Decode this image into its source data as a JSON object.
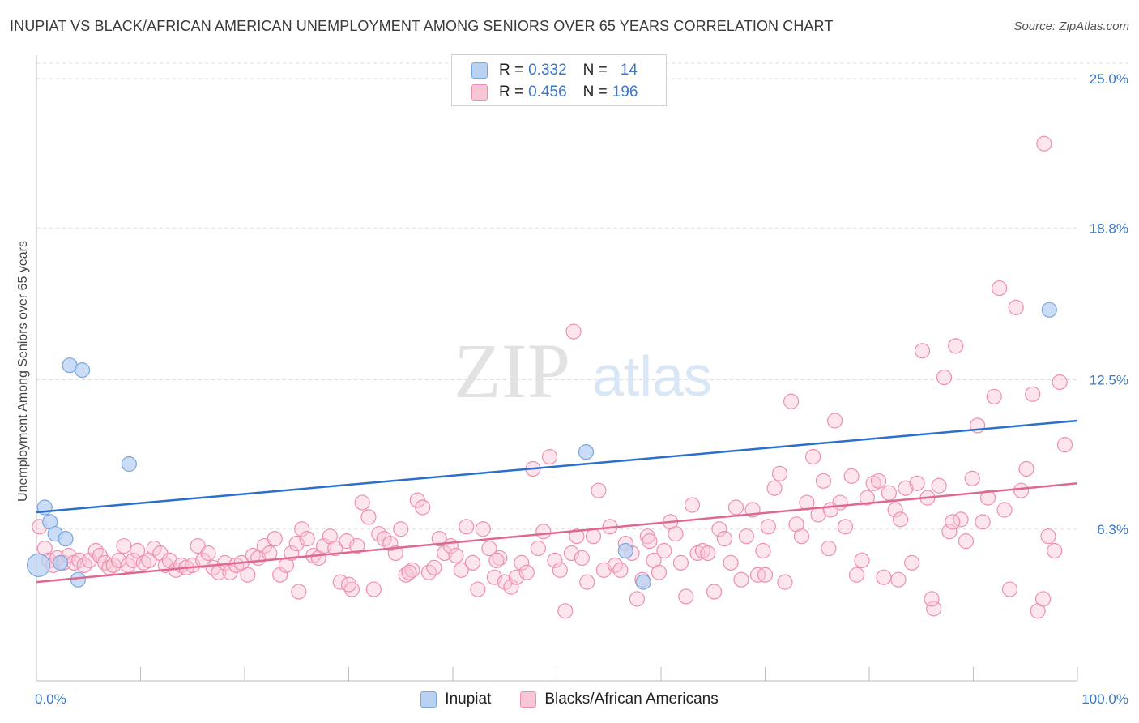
{
  "title": "INUPIAT VS BLACK/AFRICAN AMERICAN UNEMPLOYMENT AMONG SENIORS OVER 65 YEARS CORRELATION CHART",
  "source": "Source: ZipAtlas.com",
  "watermark": {
    "zip": "ZIP",
    "atlas": "atlas"
  },
  "legend": {
    "rows": [
      {
        "r_label": "R =",
        "r_value": "0.332",
        "n_label": "N =",
        "n_value": "14"
      },
      {
        "r_label": "R =",
        "r_value": "0.456",
        "n_label": "N =",
        "n_value": "196"
      }
    ]
  },
  "bottom_legend": {
    "a": "Inupiat",
    "b": "Blacks/African Americans"
  },
  "colors": {
    "inupiat_fill": "#b9d1f3",
    "inupiat_stroke": "#7aa6e0",
    "inupiat_line": "#2a6fcc",
    "black_fill": "#f8c6d5",
    "black_stroke": "#ee8fb0",
    "black_line": "#e0688f",
    "tick_text": "#3a78c8",
    "grid": "#dcdcdc"
  },
  "chart_data": {
    "type": "scatter",
    "title": "INUPIAT VS BLACK/AFRICAN AMERICAN UNEMPLOYMENT AMONG SENIORS OVER 65 YEARS CORRELATION CHART",
    "xlabel": "",
    "ylabel": "Unemployment Among Seniors over 65 years",
    "xlim": [
      0,
      100
    ],
    "ylim": [
      0,
      25
    ],
    "x_tick_labels": [
      "0.0%",
      "100.0%"
    ],
    "y_ticks": [
      6.3,
      12.5,
      18.8,
      25.0
    ],
    "y_tick_labels": [
      "6.3%",
      "12.5%",
      "18.8%",
      "25.0%"
    ],
    "grid": true,
    "legend_position": "top-center",
    "series": [
      {
        "name": "Inupiat",
        "r": 0.332,
        "n": 14,
        "trend": [
          [
            0,
            7.0
          ],
          [
            100,
            10.8
          ]
        ],
        "points": [
          [
            0.2,
            4.8
          ],
          [
            0.8,
            7.2
          ],
          [
            1.3,
            6.6
          ],
          [
            1.8,
            6.1
          ],
          [
            2.3,
            4.9
          ],
          [
            2.8,
            5.9
          ],
          [
            3.2,
            13.1
          ],
          [
            4.4,
            12.9
          ],
          [
            4.0,
            4.2
          ],
          [
            8.9,
            9.0
          ],
          [
            52.8,
            9.5
          ],
          [
            56.6,
            5.4
          ],
          [
            58.3,
            4.1
          ],
          [
            97.3,
            15.4
          ]
        ]
      },
      {
        "name": "Blacks/African Americans",
        "r": 0.456,
        "n": 196,
        "trend": [
          [
            0,
            4.1
          ],
          [
            100,
            8.2
          ]
        ],
        "points": [
          [
            0.3,
            6.4
          ],
          [
            0.8,
            5.5
          ],
          [
            1.2,
            5.0
          ],
          [
            1.6,
            4.8
          ],
          [
            2.0,
            5.1
          ],
          [
            2.6,
            4.9
          ],
          [
            3.1,
            5.2
          ],
          [
            3.6,
            4.9
          ],
          [
            4.1,
            5.0
          ],
          [
            4.6,
            4.8
          ],
          [
            5.1,
            5.0
          ],
          [
            5.7,
            5.4
          ],
          [
            6.1,
            5.2
          ],
          [
            6.6,
            4.9
          ],
          [
            7.0,
            4.7
          ],
          [
            7.4,
            4.8
          ],
          [
            7.9,
            5.0
          ],
          [
            8.4,
            5.6
          ],
          [
            8.8,
            4.8
          ],
          [
            9.3,
            5.0
          ],
          [
            9.7,
            5.4
          ],
          [
            10.3,
            4.9
          ],
          [
            10.8,
            5.0
          ],
          [
            11.3,
            5.5
          ],
          [
            11.9,
            5.3
          ],
          [
            12.4,
            4.8
          ],
          [
            12.8,
            5.0
          ],
          [
            13.4,
            4.6
          ],
          [
            13.9,
            4.8
          ],
          [
            14.4,
            4.7
          ],
          [
            15.0,
            4.8
          ],
          [
            15.5,
            5.6
          ],
          [
            16.0,
            5.0
          ],
          [
            16.5,
            5.3
          ],
          [
            17.0,
            4.7
          ],
          [
            17.5,
            4.5
          ],
          [
            18.1,
            4.9
          ],
          [
            18.6,
            4.5
          ],
          [
            19.2,
            4.8
          ],
          [
            19.7,
            4.9
          ],
          [
            20.3,
            4.4
          ],
          [
            20.8,
            5.2
          ],
          [
            21.3,
            5.1
          ],
          [
            21.9,
            5.6
          ],
          [
            22.4,
            5.3
          ],
          [
            22.9,
            5.9
          ],
          [
            23.4,
            4.4
          ],
          [
            24.0,
            4.8
          ],
          [
            24.5,
            5.3
          ],
          [
            25.0,
            5.7
          ],
          [
            25.5,
            6.3
          ],
          [
            26.0,
            5.9
          ],
          [
            26.6,
            5.2
          ],
          [
            27.1,
            5.1
          ],
          [
            27.6,
            5.6
          ],
          [
            28.2,
            6.0
          ],
          [
            28.7,
            5.5
          ],
          [
            29.2,
            4.1
          ],
          [
            29.8,
            5.8
          ],
          [
            30.3,
            3.8
          ],
          [
            30.8,
            5.6
          ],
          [
            31.3,
            7.4
          ],
          [
            31.9,
            6.8
          ],
          [
            32.4,
            3.8
          ],
          [
            32.9,
            6.1
          ],
          [
            33.4,
            5.9
          ],
          [
            34.0,
            5.7
          ],
          [
            34.5,
            5.3
          ],
          [
            35.0,
            6.3
          ],
          [
            35.5,
            4.4
          ],
          [
            36.1,
            4.6
          ],
          [
            36.6,
            7.5
          ],
          [
            37.1,
            7.2
          ],
          [
            37.7,
            4.5
          ],
          [
            38.2,
            4.7
          ],
          [
            38.7,
            5.9
          ],
          [
            39.2,
            5.3
          ],
          [
            39.8,
            5.6
          ],
          [
            40.3,
            5.2
          ],
          [
            40.8,
            4.6
          ],
          [
            41.3,
            6.4
          ],
          [
            41.9,
            4.9
          ],
          [
            42.4,
            3.8
          ],
          [
            42.9,
            6.3
          ],
          [
            43.5,
            5.5
          ],
          [
            44.0,
            4.3
          ],
          [
            44.5,
            5.1
          ],
          [
            45.0,
            4.1
          ],
          [
            45.6,
            3.9
          ],
          [
            46.1,
            4.3
          ],
          [
            46.6,
            4.9
          ],
          [
            47.1,
            4.5
          ],
          [
            47.7,
            8.8
          ],
          [
            48.2,
            5.5
          ],
          [
            48.7,
            6.2
          ],
          [
            49.3,
            9.3
          ],
          [
            49.8,
            5.0
          ],
          [
            50.3,
            4.6
          ],
          [
            50.8,
            2.9
          ],
          [
            51.4,
            5.3
          ],
          [
            51.9,
            6.0
          ],
          [
            52.4,
            5.1
          ],
          [
            52.9,
            4.1
          ],
          [
            53.5,
            6.0
          ],
          [
            54.0,
            7.9
          ],
          [
            54.5,
            4.6
          ],
          [
            55.1,
            6.4
          ],
          [
            55.6,
            4.8
          ],
          [
            56.1,
            4.6
          ],
          [
            56.6,
            5.7
          ],
          [
            57.2,
            5.3
          ],
          [
            57.7,
            3.4
          ],
          [
            58.2,
            4.2
          ],
          [
            58.7,
            6.0
          ],
          [
            59.3,
            5.0
          ],
          [
            59.8,
            4.5
          ],
          [
            60.3,
            5.4
          ],
          [
            60.9,
            6.6
          ],
          [
            61.4,
            6.1
          ],
          [
            61.9,
            4.9
          ],
          [
            62.4,
            3.5
          ],
          [
            63.0,
            7.3
          ],
          [
            63.5,
            5.3
          ],
          [
            64.0,
            5.4
          ],
          [
            64.5,
            5.3
          ],
          [
            65.1,
            3.7
          ],
          [
            65.6,
            6.3
          ],
          [
            66.1,
            5.9
          ],
          [
            66.7,
            4.9
          ],
          [
            67.2,
            7.2
          ],
          [
            67.7,
            4.2
          ],
          [
            68.2,
            6.0
          ],
          [
            68.8,
            7.1
          ],
          [
            69.3,
            4.4
          ],
          [
            69.8,
            5.4
          ],
          [
            70.3,
            6.4
          ],
          [
            70.9,
            8.0
          ],
          [
            71.4,
            8.6
          ],
          [
            71.9,
            4.1
          ],
          [
            72.5,
            11.6
          ],
          [
            73.0,
            6.5
          ],
          [
            73.5,
            6.0
          ],
          [
            74.0,
            7.4
          ],
          [
            74.6,
            9.3
          ],
          [
            75.1,
            6.9
          ],
          [
            75.6,
            8.3
          ],
          [
            76.1,
            5.5
          ],
          [
            76.7,
            10.8
          ],
          [
            77.2,
            7.4
          ],
          [
            77.7,
            6.4
          ],
          [
            78.3,
            8.5
          ],
          [
            78.8,
            4.4
          ],
          [
            79.3,
            5.0
          ],
          [
            79.8,
            7.6
          ],
          [
            80.4,
            8.2
          ],
          [
            80.9,
            8.3
          ],
          [
            81.4,
            4.3
          ],
          [
            81.9,
            7.8
          ],
          [
            82.5,
            7.1
          ],
          [
            83.0,
            6.7
          ],
          [
            83.5,
            8.0
          ],
          [
            84.1,
            4.9
          ],
          [
            84.6,
            8.2
          ],
          [
            85.1,
            13.7
          ],
          [
            85.6,
            7.6
          ],
          [
            86.2,
            3.0
          ],
          [
            86.7,
            8.1
          ],
          [
            87.2,
            12.6
          ],
          [
            87.7,
            6.2
          ],
          [
            88.3,
            13.9
          ],
          [
            88.8,
            6.7
          ],
          [
            89.3,
            5.8
          ],
          [
            89.9,
            8.4
          ],
          [
            90.4,
            10.6
          ],
          [
            90.9,
            6.6
          ],
          [
            91.4,
            7.6
          ],
          [
            92.0,
            11.8
          ],
          [
            92.5,
            16.3
          ],
          [
            93.0,
            7.1
          ],
          [
            93.5,
            3.8
          ],
          [
            94.1,
            15.5
          ],
          [
            94.6,
            7.9
          ],
          [
            95.1,
            8.8
          ],
          [
            95.7,
            11.9
          ],
          [
            96.2,
            2.9
          ],
          [
            96.7,
            3.4
          ],
          [
            97.2,
            6.0
          ],
          [
            97.8,
            5.4
          ],
          [
            98.3,
            12.4
          ],
          [
            98.8,
            9.8
          ],
          [
            88.0,
            6.6
          ],
          [
            86.0,
            3.4
          ],
          [
            70.0,
            4.4
          ],
          [
            44.2,
            5.0
          ],
          [
            35.8,
            4.5
          ],
          [
            30.0,
            4.0
          ],
          [
            25.2,
            3.7
          ],
          [
            96.8,
            22.3
          ],
          [
            51.6,
            14.5
          ],
          [
            82.8,
            4.2
          ],
          [
            76.3,
            7.1
          ],
          [
            58.9,
            5.8
          ]
        ]
      }
    ]
  }
}
